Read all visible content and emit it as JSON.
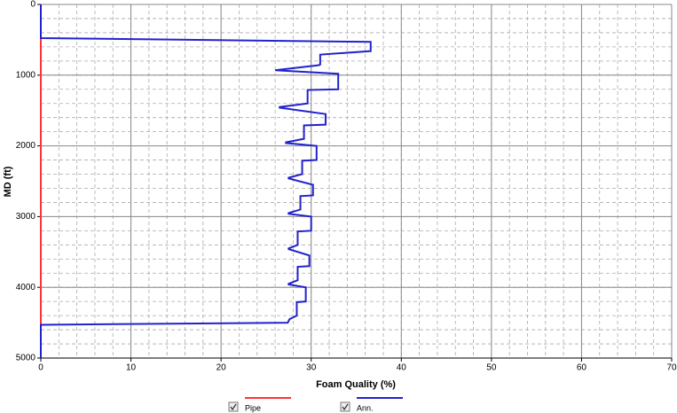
{
  "chart_data": {
    "type": "line",
    "xlabel": "Foam Quality (%)",
    "ylabel": "MD (ft)",
    "xlim": [
      0,
      70
    ],
    "xticks": [
      0,
      10,
      20,
      30,
      40,
      50,
      60,
      70
    ],
    "ylim": [
      0,
      5000
    ],
    "yticks": [
      0,
      1000,
      2000,
      3000,
      4000,
      5000
    ],
    "y_inverted": true,
    "grid": true,
    "minor_grid": {
      "x": 2,
      "y": 200
    },
    "legend": "bottom",
    "series": [
      {
        "name": "Pipe",
        "color": "#ff3333",
        "md": [
          490,
          4530
        ],
        "values": [
          0,
          0
        ]
      },
      {
        "name": "Ann.",
        "color": "#2222cc",
        "md": [
          0,
          476,
          530,
          660,
          710,
          850,
          860,
          930,
          980,
          1000,
          1200,
          1210,
          1400,
          1450,
          1460,
          1550,
          1700,
          1710,
          1900,
          1950,
          1960,
          2000,
          2200,
          2210,
          2400,
          2450,
          2460,
          2550,
          2700,
          2710,
          2900,
          2950,
          2960,
          3000,
          3200,
          3210,
          3400,
          3450,
          3460,
          3550,
          3700,
          3710,
          3900,
          3950,
          3960,
          4000,
          4200,
          4210,
          4400,
          4450,
          4500,
          4530,
          5000
        ],
        "values": [
          0,
          0,
          36.6,
          36.6,
          31,
          31,
          30.8,
          26,
          33,
          33,
          33,
          29.6,
          29.6,
          26.5,
          26.5,
          31.6,
          31.6,
          29.2,
          29.2,
          27.2,
          27.2,
          30.6,
          30.6,
          29,
          29,
          27.5,
          27.5,
          30.2,
          30.2,
          28.8,
          28.8,
          27.5,
          27.5,
          30,
          30,
          28.5,
          28.5,
          27.5,
          27.5,
          29.8,
          29.8,
          28.5,
          28.5,
          27.5,
          27.5,
          29.4,
          29.4,
          28.4,
          28.4,
          27.6,
          27.4,
          0,
          0
        ]
      }
    ]
  }
}
